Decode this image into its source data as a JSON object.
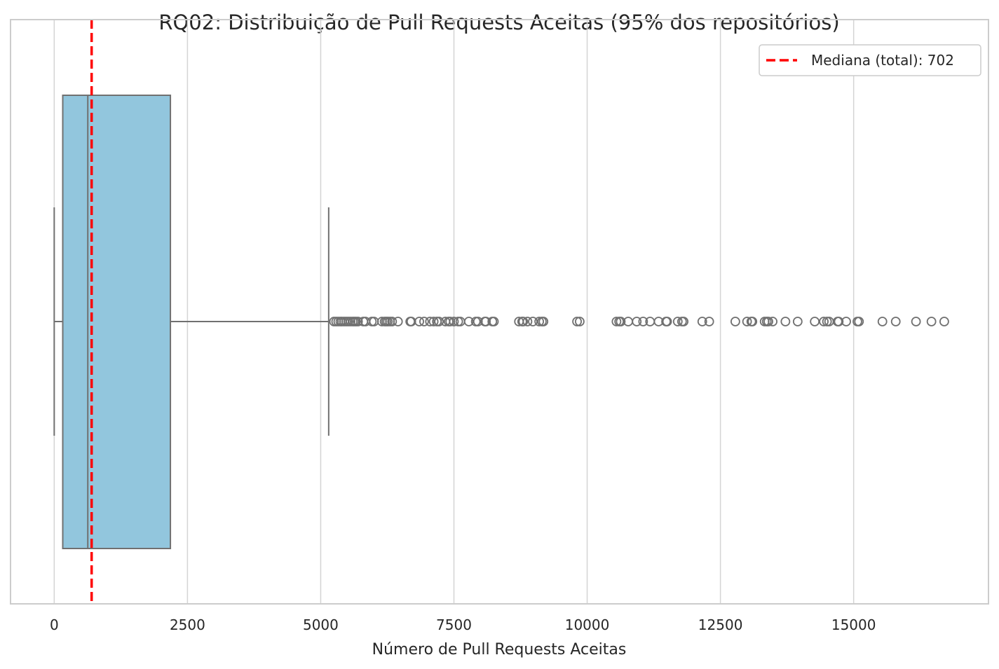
{
  "chart_data": {
    "type": "box",
    "title": "RQ02: Distribuição de Pull Requests Aceitas (95% dos repositórios)",
    "xlabel": "Número de Pull Requests Aceitas",
    "ylabel": "",
    "xlim": [
      -820,
      17530
    ],
    "x_ticks": [
      0,
      2500,
      5000,
      7500,
      10000,
      12500,
      15000
    ],
    "x_tick_labels": [
      "0",
      "2500",
      "5000",
      "7500",
      "10000",
      "12500",
      "15000"
    ],
    "grid": "vertical",
    "box": {
      "whisker_low": 0,
      "q1": 160,
      "median": 630,
      "q3": 2180,
      "whisker_high": 5150,
      "fill": "#92c6dd",
      "edge": "#707070"
    },
    "outliers": [
      5250,
      5290,
      5330,
      5370,
      5400,
      5440,
      5480,
      5520,
      5560,
      5600,
      5630,
      5660,
      5700,
      5800,
      5840,
      5960,
      6000,
      6150,
      6200,
      6230,
      6260,
      6300,
      6340,
      6450,
      6680,
      6700,
      6850,
      6940,
      7050,
      7120,
      7180,
      7220,
      7340,
      7400,
      7430,
      7500,
      7580,
      7620,
      7780,
      7910,
      7950,
      8080,
      8100,
      8220,
      8250,
      8720,
      8780,
      8800,
      8880,
      8980,
      9100,
      9150,
      9180,
      9810,
      9860,
      10550,
      10600,
      10630,
      10770,
      10930,
      11050,
      11180,
      11340,
      11480,
      11500,
      11700,
      11780,
      11810,
      12160,
      12290,
      12780,
      13000,
      13080,
      13100,
      13330,
      13370,
      13400,
      13480,
      13720,
      13950,
      14270,
      14440,
      14500,
      14540,
      14700,
      14720,
      14860,
      15070,
      15100,
      15540,
      15790,
      16170,
      16460,
      16700
    ],
    "reference_line": {
      "value": 702,
      "label": "Mediana (total): 702",
      "color": "#ff0000",
      "style": "dashed"
    },
    "legend_placement": "top-right"
  }
}
